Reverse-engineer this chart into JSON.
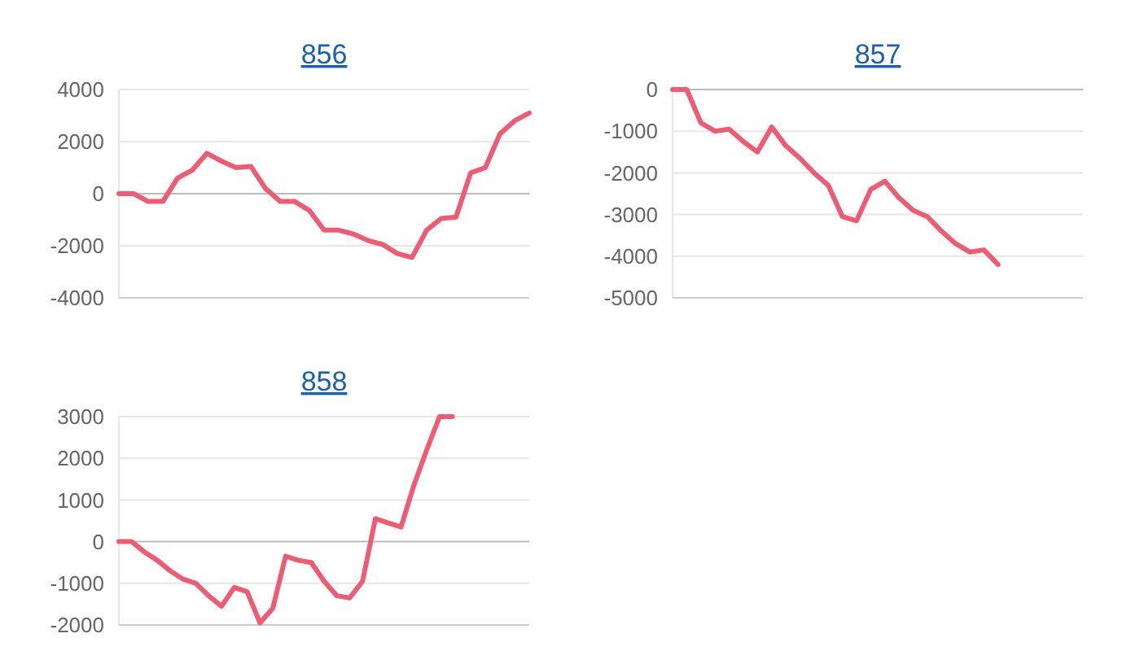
{
  "chart_data": [
    {
      "type": "line",
      "title": "856",
      "categories": [
        null,
        null,
        null,
        null,
        null,
        null,
        null,
        null,
        null,
        null,
        null,
        null,
        null,
        null,
        null,
        null,
        null,
        null,
        null,
        null,
        null,
        null,
        null,
        null,
        null,
        null,
        null,
        null,
        null
      ],
      "series": [
        {
          "color": "#ef5b73",
          "values": [
            0,
            0,
            -300,
            -300,
            600,
            900,
            1550,
            1250,
            1000,
            1050,
            200,
            -300,
            -300,
            -650,
            -1400,
            -1400,
            -1550,
            -1800,
            -1950,
            -2300,
            -2450,
            -1400,
            -950,
            -900,
            800,
            1000,
            2300,
            2800,
            3100
          ]
        }
      ],
      "ylim": [
        -4000,
        4000
      ],
      "yticks": [
        -4000,
        -2000,
        0,
        2000,
        4000
      ],
      "grid": "y",
      "tick_labels": "y"
    },
    {
      "type": "line",
      "title": "857",
      "categories": [
        null,
        null,
        null,
        null,
        null,
        null,
        null,
        null,
        null,
        null,
        null,
        null,
        null,
        null,
        null,
        null,
        null,
        null,
        null,
        null,
        null,
        null,
        null,
        null,
        null,
        null,
        null,
        null,
        null,
        null
      ],
      "series": [
        {
          "color": "#ef5b73",
          "values": [
            0,
            0,
            -800,
            -1000,
            -950,
            -1250,
            -1500,
            -900,
            -1350,
            -1650,
            -2000,
            -2300,
            -3050,
            -3150,
            -2400,
            -2200,
            -2600,
            -2900,
            -3050,
            -3400,
            -3700,
            -3900,
            -3850,
            -4200,
            null,
            null,
            null,
            null,
            null,
            null
          ]
        }
      ],
      "ylim": [
        -5000,
        0
      ],
      "yticks": [
        -5000,
        -4000,
        -3000,
        -2000,
        -1000,
        0
      ],
      "grid": "y",
      "tick_labels": "y"
    },
    {
      "type": "line",
      "title": "858",
      "categories": [
        null,
        null,
        null,
        null,
        null,
        null,
        null,
        null,
        null,
        null,
        null,
        null,
        null,
        null,
        null,
        null,
        null,
        null,
        null,
        null,
        null,
        null,
        null,
        null,
        null,
        null,
        null,
        null,
        null,
        null,
        null,
        null,
        null
      ],
      "series": [
        {
          "color": "#ef5b73",
          "values": [
            0,
            0,
            -250,
            -450,
            -700,
            -900,
            -1000,
            -1300,
            -1550,
            -1100,
            -1200,
            -1950,
            -1600,
            -350,
            -450,
            -500,
            -950,
            -1300,
            -1350,
            -950,
            550,
            450,
            350,
            1350,
            2200,
            3000,
            3000,
            null,
            null,
            null,
            null,
            null,
            null
          ]
        }
      ],
      "ylim": [
        -2000,
        3000
      ],
      "yticks": [
        -2000,
        -1000,
        0,
        1000,
        2000,
        3000
      ],
      "grid": "y",
      "tick_labels": "y"
    }
  ]
}
